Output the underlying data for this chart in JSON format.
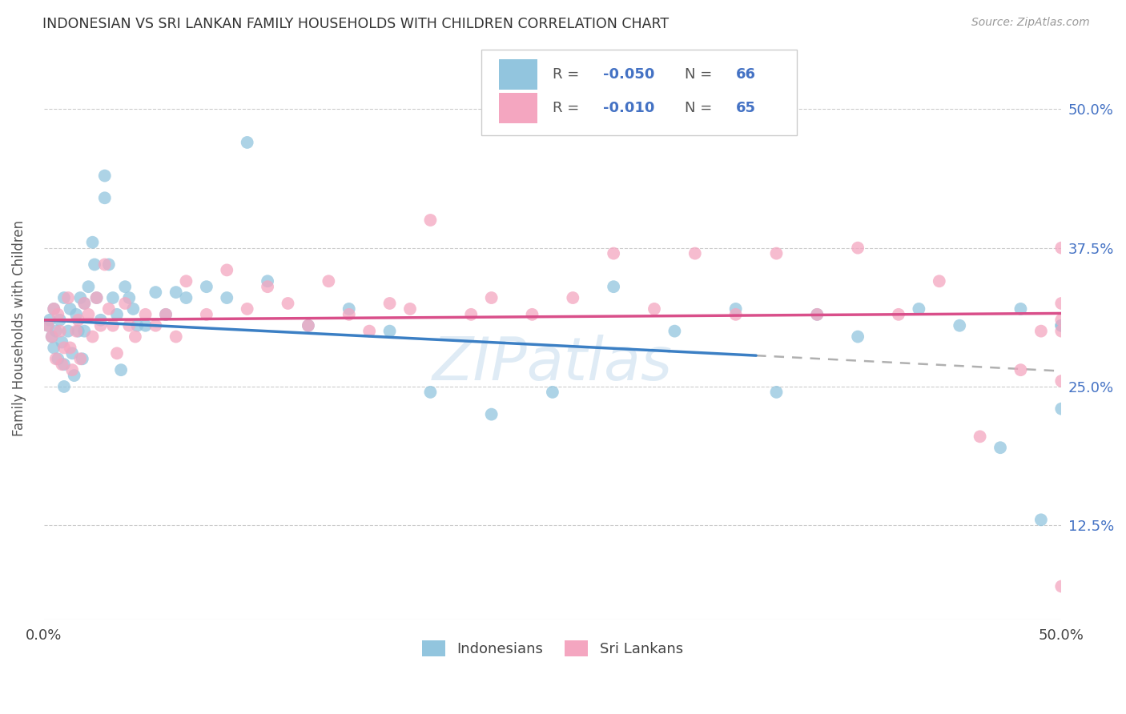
{
  "title": "INDONESIAN VS SRI LANKAN FAMILY HOUSEHOLDS WITH CHILDREN CORRELATION CHART",
  "source": "Source: ZipAtlas.com",
  "ylabel_label": "Family Households with Children",
  "xlim": [
    0.0,
    0.5
  ],
  "ylim": [
    0.04,
    0.565
  ],
  "color_blue": "#92c5de",
  "color_pink": "#f4a6c0",
  "color_blue_line": "#3b7fc4",
  "color_pink_line": "#d94f8a",
  "color_dashed": "#b0b0b0",
  "watermark": "ZIPatlas",
  "r1": "-0.050",
  "n1": "66",
  "r2": "-0.010",
  "n2": "65",
  "blue_line_x0": 0.0,
  "blue_line_y0": 0.31,
  "blue_line_x1": 0.35,
  "blue_line_y1": 0.278,
  "dash_line_x0": 0.35,
  "dash_line_y0": 0.278,
  "dash_line_x1": 0.5,
  "dash_line_y1": 0.264,
  "pink_line_x0": 0.0,
  "pink_line_y0": 0.31,
  "pink_line_x1": 0.5,
  "pink_line_y1": 0.316,
  "indonesian_x": [
    0.002,
    0.003,
    0.004,
    0.005,
    0.005,
    0.006,
    0.007,
    0.008,
    0.009,
    0.01,
    0.01,
    0.01,
    0.012,
    0.013,
    0.014,
    0.015,
    0.016,
    0.017,
    0.018,
    0.019,
    0.02,
    0.02,
    0.022,
    0.024,
    0.025,
    0.026,
    0.028,
    0.03,
    0.03,
    0.032,
    0.034,
    0.036,
    0.038,
    0.04,
    0.042,
    0.044,
    0.046,
    0.05,
    0.055,
    0.06,
    0.065,
    0.07,
    0.08,
    0.09,
    0.1,
    0.11,
    0.13,
    0.15,
    0.17,
    0.19,
    0.22,
    0.25,
    0.28,
    0.31,
    0.34,
    0.36,
    0.38,
    0.4,
    0.43,
    0.45,
    0.47,
    0.48,
    0.49,
    0.5,
    0.5,
    0.5
  ],
  "indonesian_y": [
    0.305,
    0.31,
    0.295,
    0.32,
    0.285,
    0.3,
    0.275,
    0.31,
    0.29,
    0.33,
    0.27,
    0.25,
    0.3,
    0.32,
    0.28,
    0.26,
    0.315,
    0.3,
    0.33,
    0.275,
    0.3,
    0.325,
    0.34,
    0.38,
    0.36,
    0.33,
    0.31,
    0.42,
    0.44,
    0.36,
    0.33,
    0.315,
    0.265,
    0.34,
    0.33,
    0.32,
    0.305,
    0.305,
    0.335,
    0.315,
    0.335,
    0.33,
    0.34,
    0.33,
    0.47,
    0.345,
    0.305,
    0.32,
    0.3,
    0.245,
    0.225,
    0.245,
    0.34,
    0.3,
    0.32,
    0.245,
    0.315,
    0.295,
    0.32,
    0.305,
    0.195,
    0.32,
    0.13,
    0.305,
    0.23,
    0.305
  ],
  "srilankan_x": [
    0.002,
    0.004,
    0.005,
    0.006,
    0.007,
    0.008,
    0.009,
    0.01,
    0.012,
    0.013,
    0.014,
    0.016,
    0.017,
    0.018,
    0.02,
    0.022,
    0.024,
    0.026,
    0.028,
    0.03,
    0.032,
    0.034,
    0.036,
    0.04,
    0.042,
    0.045,
    0.05,
    0.055,
    0.06,
    0.065,
    0.07,
    0.08,
    0.09,
    0.1,
    0.11,
    0.12,
    0.13,
    0.14,
    0.15,
    0.16,
    0.17,
    0.18,
    0.19,
    0.21,
    0.22,
    0.24,
    0.26,
    0.28,
    0.3,
    0.32,
    0.34,
    0.36,
    0.38,
    0.4,
    0.42,
    0.44,
    0.46,
    0.48,
    0.49,
    0.5,
    0.5,
    0.5,
    0.5,
    0.5,
    0.5
  ],
  "srilankan_y": [
    0.305,
    0.295,
    0.32,
    0.275,
    0.315,
    0.3,
    0.27,
    0.285,
    0.33,
    0.285,
    0.265,
    0.3,
    0.31,
    0.275,
    0.325,
    0.315,
    0.295,
    0.33,
    0.305,
    0.36,
    0.32,
    0.305,
    0.28,
    0.325,
    0.305,
    0.295,
    0.315,
    0.305,
    0.315,
    0.295,
    0.345,
    0.315,
    0.355,
    0.32,
    0.34,
    0.325,
    0.305,
    0.345,
    0.315,
    0.3,
    0.325,
    0.32,
    0.4,
    0.315,
    0.33,
    0.315,
    0.33,
    0.37,
    0.32,
    0.37,
    0.315,
    0.37,
    0.315,
    0.375,
    0.315,
    0.345,
    0.205,
    0.265,
    0.3,
    0.31,
    0.255,
    0.3,
    0.375,
    0.325,
    0.07
  ]
}
